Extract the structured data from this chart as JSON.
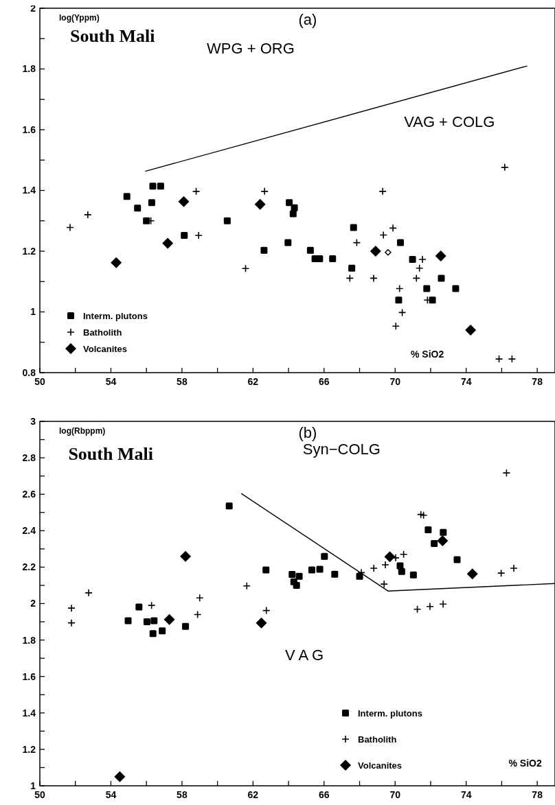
{
  "chart_data": [
    {
      "type": "scatter",
      "title": "(a)",
      "ylabel": "log(Yppm)",
      "xlabel": "% SiO2",
      "legend": "bottom left",
      "grid": false,
      "annotations": [
        "South Mali",
        "WPG + ORG",
        "VAG + COLG"
      ],
      "xlim": [
        50,
        79
      ],
      "xticks": [
        50,
        {
          "value": 52,
          "label": null
        },
        54,
        {
          "value": 56,
          "label": null
        },
        58,
        {
          "value": 60,
          "label": null
        },
        62,
        {
          "value": 64,
          "label": null
        },
        66,
        {
          "value": 68,
          "label": null
        },
        70,
        {
          "value": 72,
          "label": null
        },
        74,
        {
          "value": 76,
          "label": null
        },
        78
      ],
      "ylim": [
        0.8,
        2
      ],
      "yticks": [
        0.8,
        {
          "value": 0.9,
          "label": null
        },
        1,
        {
          "value": 1.1,
          "label": null
        },
        1.2,
        {
          "value": 1.3,
          "label": null
        },
        1.4,
        {
          "value": 1.5,
          "label": null
        },
        1.6,
        {
          "value": 1.7,
          "label": null
        },
        1.8,
        {
          "value": 1.9,
          "label": null
        },
        2
      ],
      "series": [
        {
          "name": "Interm. plutons",
          "color": "#000000",
          "marker": "square",
          "x": [
            54.9,
            55.5,
            56.36,
            56.8,
            56.3,
            56.0,
            58.13,
            60.55,
            62.62,
            63.97,
            64.04,
            64.26,
            64.33,
            67.66,
            70.3,
            65.23,
            65.49,
            65.75,
            66.48,
            70.98,
            67.56,
            72.6,
            71.78,
            73.41,
            70.2,
            72.1
          ],
          "values": [
            1.38,
            1.342,
            1.414,
            1.414,
            1.36,
            1.3,
            1.252,
            1.3,
            1.203,
            1.228,
            1.36,
            1.323,
            1.343,
            1.278,
            1.228,
            1.203,
            1.175,
            1.175,
            1.175,
            1.173,
            1.144,
            1.111,
            1.077,
            1.077,
            1.039,
            1.039
          ]
        },
        {
          "name": "Batholith",
          "color": "#000000",
          "marker": "cross",
          "x": [
            51.7,
            52.7,
            56.25,
            58.8,
            58.94,
            61.58,
            62.65,
            76.17,
            69.3,
            69.88,
            69.34,
            67.84,
            71.54,
            71.37,
            67.45,
            68.79,
            71.2,
            70.25,
            71.82,
            70.4,
            70.04,
            75.85,
            76.58
          ],
          "values": [
            1.278,
            1.32,
            1.3,
            1.397,
            1.252,
            1.143,
            1.397,
            1.476,
            1.397,
            1.276,
            1.253,
            1.228,
            1.173,
            1.144,
            1.111,
            1.111,
            1.111,
            1.077,
            1.039,
            0.998,
            0.953,
            0.845,
            0.845
          ]
        },
        {
          "name": "Volcanites",
          "color": "#000000",
          "marker": "diamond",
          "x": [
            54.3,
            57.2,
            58.1,
            62.4,
            68.9,
            72.57,
            74.25
          ],
          "values": [
            1.162,
            1.226,
            1.363,
            1.354,
            1.2,
            1.184,
            0.94
          ]
        },
        {
          "color": "#000000",
          "marker": "diamond",
          "x": [
            69.6
          ],
          "values": [
            1.196
          ]
        },
        {
          "type": "line",
          "color": "#000000",
          "marker": "none",
          "x": [
            55.93,
            77.44
          ],
          "values": [
            1.463,
            1.81
          ]
        }
      ]
    },
    {
      "type": "scatter",
      "title": "(b)",
      "ylabel": "log(Rbppm)",
      "xlabel": "% SiO2",
      "legend": "bottom right",
      "grid": false,
      "annotations": [
        "South Mali",
        "Syn−COLG",
        "V A G"
      ],
      "xlim": [
        50,
        79
      ],
      "xticks": [
        50,
        {
          "value": 52,
          "label": null
        },
        54,
        {
          "value": 56,
          "label": null
        },
        58,
        {
          "value": 60,
          "label": null
        },
        62,
        {
          "value": 64,
          "label": null
        },
        66,
        {
          "value": 68,
          "label": null
        },
        70,
        {
          "value": 72,
          "label": null
        },
        74,
        {
          "value": 76,
          "label": null
        },
        78
      ],
      "ylim": [
        1,
        3
      ],
      "yticks": [
        1,
        {
          "value": 1.1,
          "label": null
        },
        1.2,
        {
          "value": 1.3,
          "label": null
        },
        1.4,
        {
          "value": 1.5,
          "label": null
        },
        1.6,
        {
          "value": 1.7,
          "label": null
        },
        1.8,
        {
          "value": 1.9,
          "label": null
        },
        2,
        {
          "value": 2.1,
          "label": null
        },
        2.2,
        {
          "value": 2.3,
          "label": null
        },
        2.4,
        {
          "value": 2.5,
          "label": null
        },
        2.6,
        {
          "value": 2.7,
          "label": null
        },
        2.8,
        {
          "value": 2.9,
          "label": null
        },
        3
      ],
      "series": [
        {
          "name": "Interm. plutons",
          "color": "#000000",
          "marker": "square",
          "x": [
            54.97,
            55.58,
            56.03,
            56.43,
            56.37,
            56.89,
            58.2,
            60.66,
            62.73,
            64.2,
            64.3,
            64.45,
            64.6,
            66.02,
            65.31,
            65.76,
            66.6,
            68.0,
            70.28,
            70.37,
            71.03,
            71.86,
            72.71,
            72.2,
            73.49
          ],
          "values": [
            1.906,
            1.981,
            1.9,
            1.906,
            1.835,
            1.85,
            1.875,
            2.536,
            2.185,
            2.16,
            2.12,
            2.1,
            2.15,
            2.259,
            2.185,
            2.188,
            2.161,
            2.15,
            2.207,
            2.176,
            2.157,
            2.405,
            2.391,
            2.33,
            2.241
          ]
        },
        {
          "name": "Batholith",
          "color": "#000000",
          "marker": "cross",
          "x": [
            51.78,
            51.78,
            52.75,
            56.29,
            59.0,
            58.88,
            61.65,
            62.75,
            68.1,
            68.8,
            69.45,
            69.38,
            70.03,
            70.48,
            71.25,
            71.96,
            72.7,
            71.45,
            71.6,
            75.97,
            76.68,
            76.27
          ],
          "values": [
            1.975,
            1.894,
            2.059,
            1.99,
            2.031,
            1.94,
            2.097,
            1.962,
            2.17,
            2.194,
            2.213,
            2.107,
            2.251,
            2.27,
            1.969,
            1.984,
            1.997,
            2.489,
            2.485,
            2.167,
            2.194,
            2.717
          ]
        },
        {
          "name": "Volcanites",
          "color": "#000000",
          "marker": "diamond",
          "x": [
            54.5,
            57.29,
            58.2,
            62.47,
            69.7,
            72.67,
            74.35
          ],
          "values": [
            1.05,
            1.912,
            2.259,
            1.894,
            2.257,
            2.345,
            2.163
          ]
        },
        {
          "type": "line",
          "color": "#000000",
          "marker": "none",
          "x": [
            61.34,
            69.6,
            79
          ],
          "values": [
            2.604,
            2.069,
            2.11
          ]
        }
      ]
    }
  ]
}
